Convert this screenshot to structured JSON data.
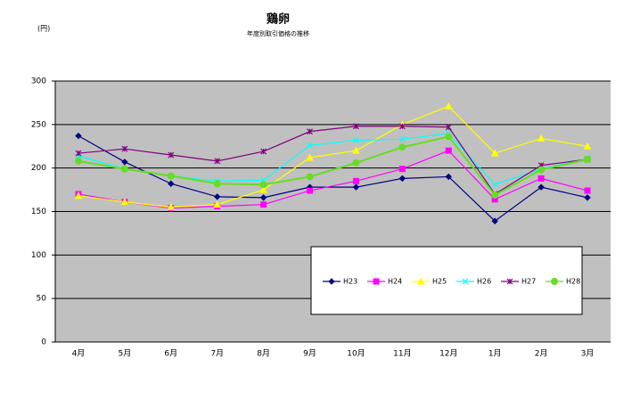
{
  "chart_data": {
    "type": "line",
    "title": "鶏卵",
    "subtitle": "年度別取引価格の推移",
    "y_label": "(円)",
    "categories": [
      "4月",
      "5月",
      "6月",
      "7月",
      "8月",
      "9月",
      "10月",
      "11月",
      "12月",
      "1月",
      "2月",
      "3月"
    ],
    "ylim": [
      0,
      300
    ],
    "yticks": [
      0,
      50,
      100,
      150,
      200,
      250,
      300
    ],
    "grid": true,
    "series": [
      {
        "name": "H23",
        "color": "#000080",
        "marker": "diamond",
        "values": [
          237,
          207,
          182,
          167,
          166,
          178,
          178,
          188,
          190,
          139,
          178,
          166
        ]
      },
      {
        "name": "H24",
        "color": "#ff00ff",
        "marker": "square",
        "values": [
          170,
          161,
          154,
          156,
          158,
          174,
          185,
          199,
          220,
          164,
          188,
          174
        ]
      },
      {
        "name": "H25",
        "color": "#ffff00",
        "marker": "triangle",
        "values": [
          168,
          161,
          155,
          158,
          175,
          212,
          220,
          250,
          271,
          217,
          234,
          225
        ]
      },
      {
        "name": "H26",
        "color": "#00ffff",
        "marker": "x",
        "values": [
          214,
          199,
          191,
          185,
          186,
          226,
          232,
          233,
          240,
          181,
          199,
          211
        ]
      },
      {
        "name": "H27",
        "color": "#800080",
        "marker": "star",
        "values": [
          217,
          222,
          215,
          208,
          219,
          242,
          248,
          248,
          247,
          170,
          203,
          210
        ]
      },
      {
        "name": "H28",
        "color": "#66dd22",
        "marker": "circle",
        "values": [
          208,
          199,
          191,
          182,
          181,
          190,
          206,
          224,
          236,
          169,
          198,
          210
        ]
      }
    ]
  }
}
